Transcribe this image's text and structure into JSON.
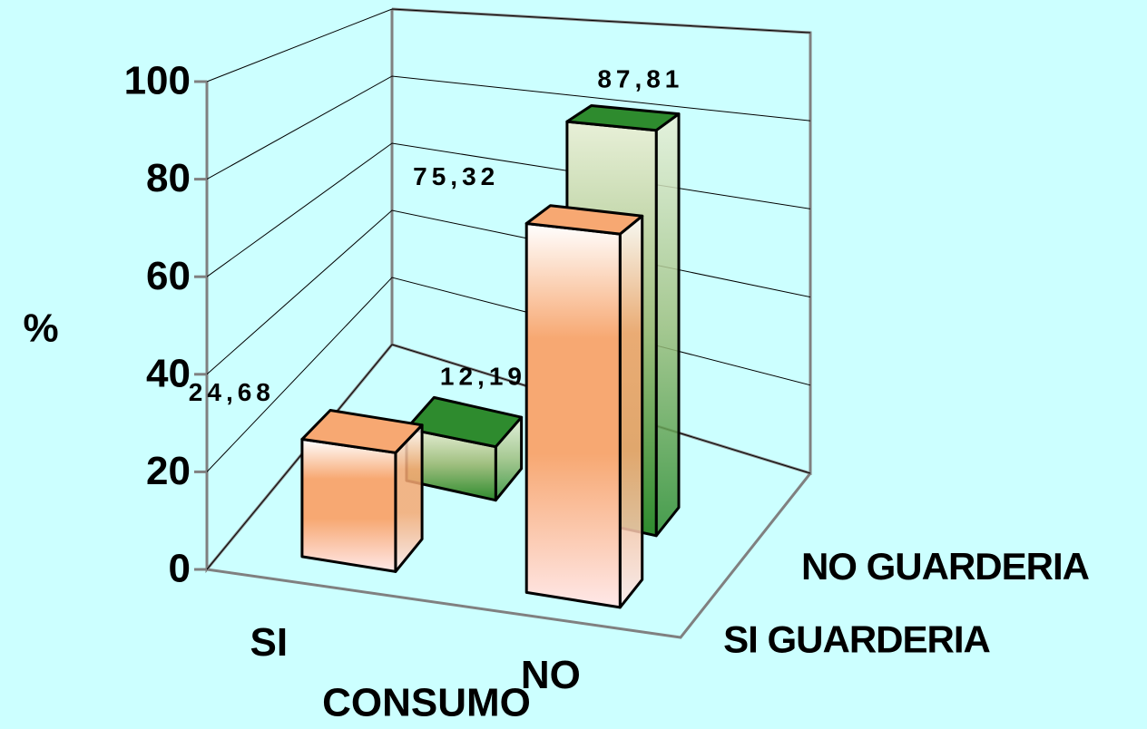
{
  "chart_data": {
    "type": "bar3d",
    "categories": [
      "SI",
      "NO"
    ],
    "series": [
      {
        "name": "SI GUARDERIA",
        "color": "#f7a872",
        "values": [
          24.68,
          75.32
        ],
        "value_labels": [
          "24,68",
          "75,32"
        ]
      },
      {
        "name": "NO GUARDERIA",
        "color": "#2e8b2e",
        "values": [
          12.19,
          87.81
        ],
        "value_labels": [
          "12,19",
          "87,81"
        ]
      }
    ],
    "ylabel": "%",
    "xlabel": "CONSUMO",
    "ylim": [
      0,
      100
    ],
    "yticks": [
      0,
      20,
      40,
      60,
      80,
      100
    ],
    "grid": true
  }
}
